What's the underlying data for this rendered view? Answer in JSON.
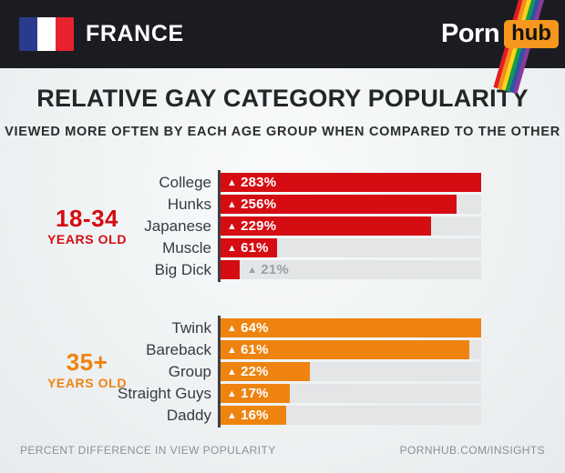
{
  "header": {
    "country": "FRANCE",
    "logo_porn": "Porn",
    "logo_hub": "hub",
    "logo_hub_bg": "#f7971d",
    "flag_colors": [
      "#2a3a8c",
      "#ffffff",
      "#e8222f"
    ],
    "rainbow_colors": [
      "#e11d26",
      "#f68b1f",
      "#ffd516",
      "#149a4e",
      "#2b55a5",
      "#8a3a9c"
    ],
    "header_bg": "#1b1c21"
  },
  "title": "RELATIVE GAY CATEGORY POPULARITY",
  "subtitle": "VIEWED MORE OFTEN BY EACH AGE GROUP WHEN COMPARED TO THE OTHER",
  "glyphs": {
    "up_triangle": "▲"
  },
  "chart_data": [
    {
      "type": "bar",
      "orientation": "horizontal",
      "group": "18-34",
      "group_suffix": "YEARS OLD",
      "color": "#d50d13",
      "categories": [
        "College",
        "Hunks",
        "Japanese",
        "Muscle",
        "Big Dick"
      ],
      "values": [
        283,
        256,
        229,
        61,
        21
      ],
      "value_labels": [
        "283%",
        "256%",
        "229%",
        "61%",
        "21%"
      ],
      "xlim": [
        0,
        283
      ],
      "track_color": "#e3e5e7",
      "legend_position": "left"
    },
    {
      "type": "bar",
      "orientation": "horizontal",
      "group": "35+",
      "group_suffix": "YEARS OLD",
      "color": "#ee8310",
      "categories": [
        "Twink",
        "Bareback",
        "Group",
        "Straight Guys",
        "Daddy"
      ],
      "values": [
        64,
        61,
        22,
        17,
        16
      ],
      "value_labels": [
        "64%",
        "61%",
        "22%",
        "17%",
        "16%"
      ],
      "xlim": [
        0,
        64
      ],
      "track_color": "#e3e5e7",
      "legend_position": "left"
    }
  ],
  "footer": {
    "left": "PERCENT DIFFERENCE IN VIEW POPULARITY",
    "right": "PORNHUB.COM/INSIGHTS"
  }
}
